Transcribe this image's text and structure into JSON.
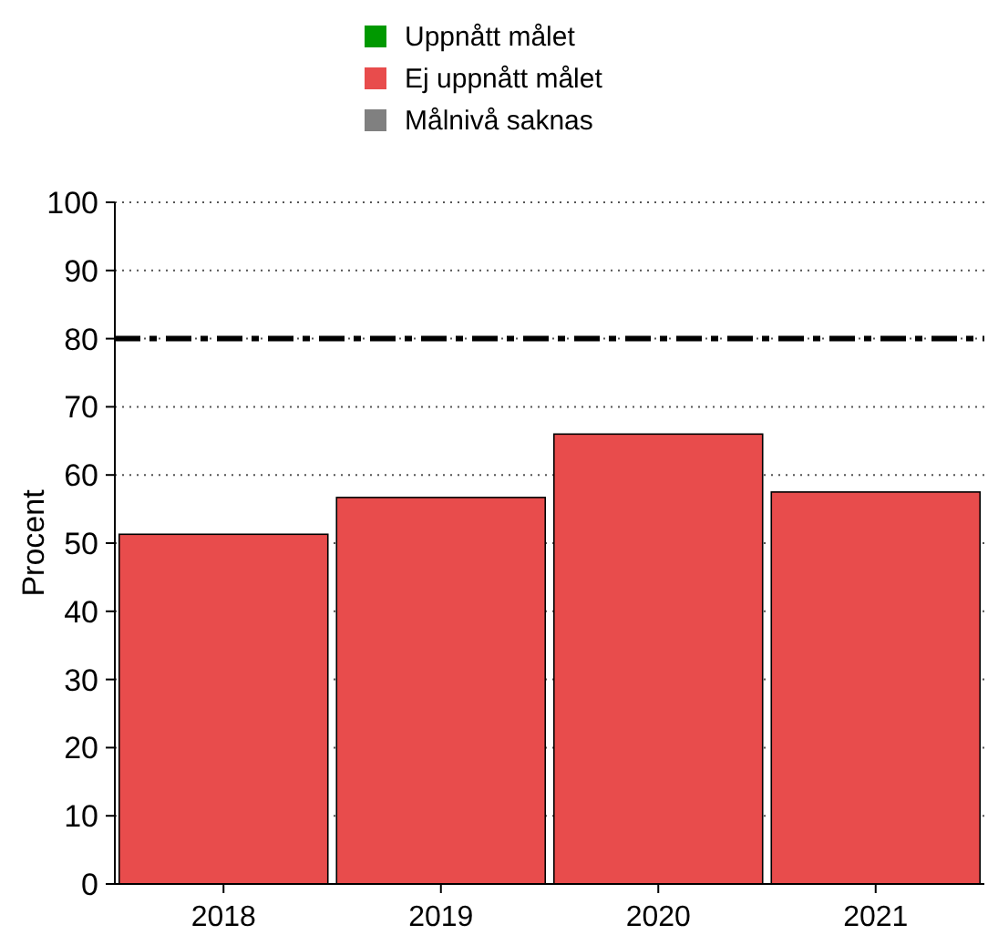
{
  "chart_data": {
    "type": "bar",
    "ylabel": "Procent",
    "categories": [
      "2018",
      "2019",
      "2020",
      "2021"
    ],
    "series": [
      {
        "name": "Uppnått målet",
        "color": "#009900",
        "values": [
          null,
          null,
          null,
          null
        ]
      },
      {
        "name": "Ej uppnått målet",
        "color": "#e84c4c",
        "values": [
          51.3,
          56.7,
          66.0,
          57.5
        ]
      },
      {
        "name": "Målnivå saknas",
        "color": "#808080",
        "values": [
          null,
          null,
          null,
          null
        ]
      }
    ],
    "ylim": [
      0,
      100
    ],
    "yticks": [
      0,
      10,
      20,
      30,
      40,
      50,
      60,
      70,
      80,
      90,
      100
    ],
    "grid": "y",
    "legend": "top",
    "ref_lines": [
      {
        "axis": "y",
        "value": 80,
        "color": "#000000",
        "line_style": "dashed"
      }
    ]
  }
}
